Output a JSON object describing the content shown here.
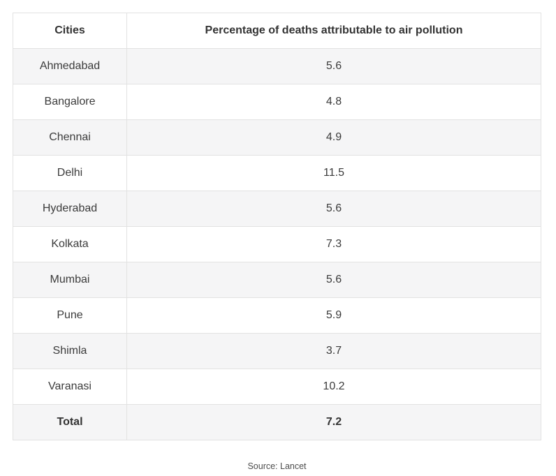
{
  "table": {
    "headers": {
      "cities": "Cities",
      "percentage": "Percentage of deaths attributable to air pollution"
    },
    "rows": [
      {
        "city": "Ahmedabad",
        "value": "5.6"
      },
      {
        "city": "Bangalore",
        "value": "4.8"
      },
      {
        "city": "Chennai",
        "value": "4.9"
      },
      {
        "city": "Delhi",
        "value": "11.5"
      },
      {
        "city": "Hyderabad",
        "value": "5.6"
      },
      {
        "city": "Kolkata",
        "value": "7.3"
      },
      {
        "city": "Mumbai",
        "value": "5.6"
      },
      {
        "city": "Pune",
        "value": "5.9"
      },
      {
        "city": "Shimla",
        "value": "3.7"
      },
      {
        "city": "Varanasi",
        "value": "10.2"
      }
    ],
    "total": {
      "label": "Total",
      "value": "7.2"
    }
  },
  "source": "Source: Lancet",
  "colors": {
    "stripe": "#f5f5f6",
    "border": "#e2e2e2",
    "text": "#3b3b3b"
  },
  "chart_data": {
    "type": "table",
    "title": "Percentage of deaths attributable to air pollution",
    "columns": [
      "Cities",
      "Percentage of deaths attributable to air pollution"
    ],
    "categories": [
      "Ahmedabad",
      "Bangalore",
      "Chennai",
      "Delhi",
      "Hyderabad",
      "Kolkata",
      "Mumbai",
      "Pune",
      "Shimla",
      "Varanasi",
      "Total"
    ],
    "values": [
      5.6,
      4.8,
      4.9,
      11.5,
      5.6,
      7.3,
      5.6,
      5.9,
      3.7,
      10.2,
      7.2
    ],
    "source": "Source: Lancet"
  }
}
